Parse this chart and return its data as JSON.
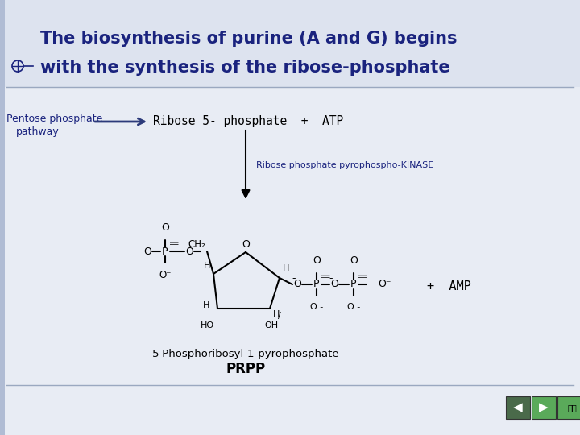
{
  "title_line1": "The biosynthesis of purine (A and G) begins",
  "title_line2": "with the synthesis of the ribose-phosphate",
  "title_color": "#1a237e",
  "bg_color": "#c8d0e0",
  "slide_bg": "#e8ecf4",
  "title_bg": "#dde3ef",
  "left_label_line1": "Pentose phosphate",
  "left_label_line2": "pathway",
  "arrow_label": "Ribose 5- phosphate  +  ATP",
  "kinase_label": "Ribose phosphate pyrophospho-KINASE",
  "amp_label": "+  AMP",
  "compound_label1": "5-Phosphoribosyl-1-pyrophosphate",
  "compound_label2": "PRPP",
  "nav_green": "#5aaa5a",
  "text_black": "#000000"
}
